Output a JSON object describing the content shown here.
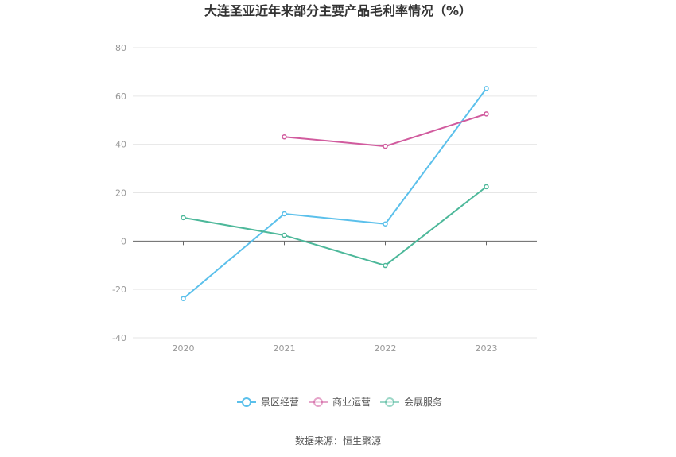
{
  "chart_data": {
    "type": "line",
    "title": "大连圣亚近年来部分主要产品毛利率情况（%）",
    "categories": [
      "2020",
      "2021",
      "2022",
      "2023"
    ],
    "y_ticks": [
      "80",
      "60",
      "40",
      "20",
      "0",
      "-20",
      "-40"
    ],
    "ylim": [
      -40,
      80
    ],
    "grid": true,
    "legend_position": "bottom",
    "series": [
      {
        "name": "景区经营",
        "color": "#5bc0eb",
        "values": [
          -23.8,
          11.3,
          7.1,
          63.1
        ]
      },
      {
        "name": "商业运营",
        "color": "#d15b9e",
        "values": [
          null,
          43.1,
          39.2,
          52.6
        ]
      },
      {
        "name": "会展服务",
        "color": "#4db89a",
        "values": [
          9.7,
          2.4,
          -10.1,
          22.5
        ]
      }
    ]
  },
  "source_text": "数据来源：恒生聚源"
}
